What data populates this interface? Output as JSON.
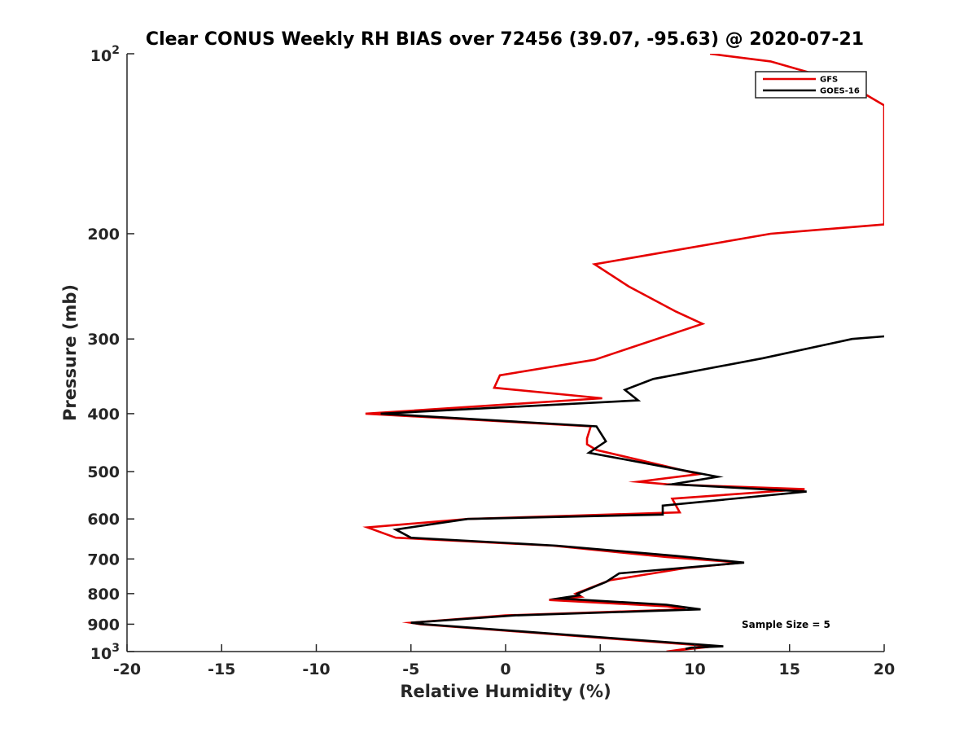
{
  "chart_data": {
    "type": "line",
    "title": "Clear CONUS Weekly RH BIAS over 72456 (39.07, -95.63) @ 2020-07-21",
    "xlabel": "Relative Humidity (%)",
    "ylabel": "Pressure (mb)",
    "xlim": [
      -20,
      20
    ],
    "ylim": [
      100,
      1000
    ],
    "yscale": "log",
    "y_reversed": true,
    "grid": false,
    "x_ticks": [
      -20,
      -15,
      -10,
      -5,
      0,
      5,
      10,
      15,
      20
    ],
    "x_tick_labels": [
      "-20",
      "-15",
      "-10",
      "-5",
      "0",
      "5",
      "10",
      "15",
      "20"
    ],
    "y_ticks": [
      100,
      200,
      300,
      400,
      500,
      600,
      700,
      800,
      900,
      1000
    ],
    "y_tick_labels": [
      {
        "base": "10",
        "exp": "2"
      },
      {
        "base": "200"
      },
      {
        "base": "300"
      },
      {
        "base": "400"
      },
      {
        "base": "500"
      },
      {
        "base": "600"
      },
      {
        "base": "700"
      },
      {
        "base": "800"
      },
      {
        "base": "900"
      },
      {
        "base": "10",
        "exp": "3"
      }
    ],
    "legend_position": "top-right",
    "annotation": "Sample Size = 5",
    "series": [
      {
        "name": "GFS",
        "color": "#e60000",
        "points": [
          [
            9.5,
            990
          ],
          [
            8.5,
            1000
          ],
          [
            11,
            980
          ],
          [
            -4.5,
            900
          ],
          [
            -5,
            895
          ],
          [
            0,
            870
          ],
          [
            9.5,
            850
          ],
          [
            8.5,
            840
          ],
          [
            2.3,
            820
          ],
          [
            4,
            810
          ],
          [
            3.7,
            800
          ],
          [
            5.5,
            760
          ],
          [
            9.5,
            725
          ],
          [
            12.5,
            710
          ],
          [
            8.5,
            695
          ],
          [
            2.5,
            665
          ],
          [
            -5.8,
            645
          ],
          [
            -7.3,
            620
          ],
          [
            -2,
            600
          ],
          [
            9.2,
            585
          ],
          [
            8.8,
            555
          ],
          [
            15.8,
            535
          ],
          [
            8.5,
            525
          ],
          [
            7,
            520
          ],
          [
            10.2,
            505
          ],
          [
            8.5,
            490
          ],
          [
            4.8,
            460
          ],
          [
            4.3,
            450
          ],
          [
            4.3,
            440
          ],
          [
            4.5,
            420
          ],
          [
            -7.4,
            400
          ],
          [
            5.1,
            377
          ],
          [
            -0.6,
            362
          ],
          [
            -0.3,
            345
          ],
          [
            4.7,
            325
          ],
          [
            10.4,
            283
          ],
          [
            9,
            270
          ],
          [
            6.5,
            245
          ],
          [
            4.7,
            225
          ],
          [
            14,
            200
          ],
          [
            20,
            193
          ],
          [
            20,
            122
          ],
          [
            18,
            112
          ],
          [
            14,
            103
          ],
          [
            10.8,
            100
          ]
        ]
      },
      {
        "name": "GOES-16",
        "color": "#000000",
        "points": [
          [
            9.5,
            990
          ],
          [
            9.8,
            985
          ],
          [
            11.5,
            980
          ],
          [
            -4.3,
            900
          ],
          [
            -5,
            895
          ],
          [
            0.5,
            870
          ],
          [
            10.3,
            850
          ],
          [
            8.5,
            835
          ],
          [
            2.8,
            815
          ],
          [
            3.9,
            805
          ],
          [
            3.8,
            800
          ],
          [
            5.3,
            765
          ],
          [
            6,
            740
          ],
          [
            12.6,
            710
          ],
          [
            9,
            692
          ],
          [
            2.7,
            665
          ],
          [
            -5,
            645
          ],
          [
            -5.8,
            625
          ],
          [
            -2,
            600
          ],
          [
            8.3,
            590
          ],
          [
            8.3,
            570
          ],
          [
            15.9,
            540
          ],
          [
            8.8,
            525
          ],
          [
            11.2,
            510
          ],
          [
            9,
            495
          ],
          [
            4.4,
            465
          ],
          [
            5.3,
            445
          ],
          [
            4.8,
            420
          ],
          [
            -6.6,
            400
          ],
          [
            7,
            380
          ],
          [
            6.3,
            365
          ],
          [
            7.8,
            350
          ],
          [
            13.6,
            323
          ],
          [
            18.3,
            300
          ],
          [
            20,
            297
          ]
        ]
      }
    ]
  }
}
